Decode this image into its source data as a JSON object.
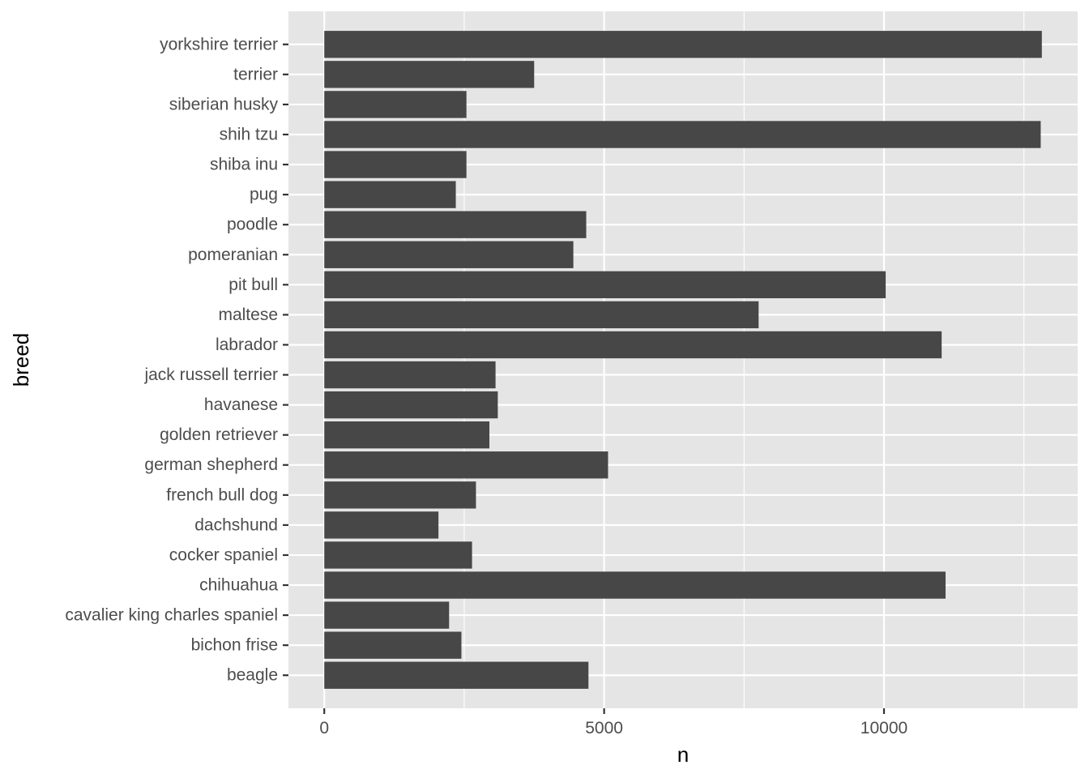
{
  "chart_data": {
    "type": "bar",
    "orientation": "horizontal",
    "title": "",
    "xlabel": "n",
    "ylabel": "breed",
    "categories": [
      "beagle",
      "bichon frise",
      "cavalier king charles spaniel",
      "chihuahua",
      "cocker spaniel",
      "dachshund",
      "french bull dog",
      "german shepherd",
      "golden retriever",
      "havanese",
      "jack russell terrier",
      "labrador",
      "maltese",
      "pit bull",
      "pomeranian",
      "poodle",
      "pug",
      "shiba inu",
      "shih tzu",
      "siberian husky",
      "terrier",
      "yorkshire terrier"
    ],
    "values": [
      4720,
      2450,
      2230,
      11100,
      2640,
      2040,
      2710,
      5070,
      2950,
      3100,
      3060,
      11030,
      7760,
      10030,
      4450,
      4680,
      2350,
      2540,
      12800,
      2540,
      3750,
      12820
    ],
    "xlim": [
      -640,
      13460
    ],
    "xticks": [
      0,
      5000,
      10000
    ],
    "xtick_labels": [
      "0",
      "5000",
      "10000"
    ],
    "x_minor_gridlines": [
      2500,
      7500,
      12500
    ],
    "grid": true,
    "legend": "none",
    "colors": {
      "bar": "#474747",
      "panel_background": "#e5e5e5",
      "gridline": "#ffffff"
    }
  }
}
